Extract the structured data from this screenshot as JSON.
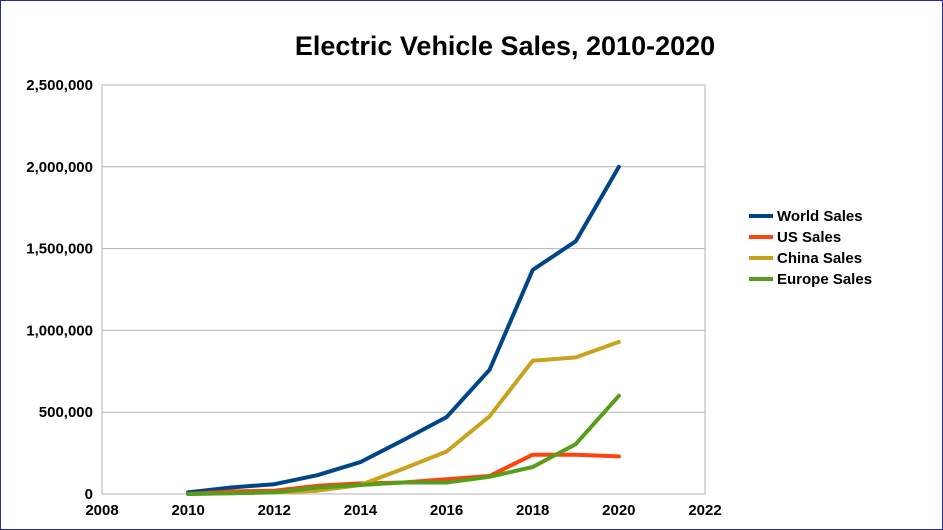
{
  "chart_data": {
    "type": "line",
    "title": "Electric Vehicle Sales, 2010-2020",
    "xlabel": "",
    "ylabel": "",
    "xlim": [
      2008,
      2022
    ],
    "ylim": [
      0,
      2500000
    ],
    "x_ticks": [
      2008,
      2010,
      2012,
      2014,
      2016,
      2018,
      2020,
      2022
    ],
    "x_tick_labels": [
      "2008",
      "2010",
      "2012",
      "2014",
      "2016",
      "2018",
      "2020",
      "2022"
    ],
    "y_ticks": [
      0,
      500000,
      1000000,
      1500000,
      2000000,
      2500000
    ],
    "y_tick_labels": [
      "0",
      "500,000",
      "1,000,000",
      "1,500,000",
      "2,000,000",
      "2,500,000"
    ],
    "grid": "horizontal",
    "legend_position": "right",
    "x": [
      2010,
      2011,
      2012,
      2013,
      2014,
      2015,
      2016,
      2017,
      2018,
      2019,
      2020
    ],
    "series": [
      {
        "name": "World Sales",
        "color": "#004586",
        "values": [
          10000,
          40000,
          60000,
          115000,
          195000,
          330000,
          470000,
          760000,
          1370000,
          1545000,
          2000000
        ]
      },
      {
        "name": "US Sales",
        "color": "#ff420e",
        "values": [
          0,
          15000,
          20000,
          50000,
          65000,
          70000,
          90000,
          110000,
          240000,
          240000,
          230000
        ]
      },
      {
        "name": "China Sales",
        "color": "#c9a21e",
        "values": [
          0,
          5000,
          10000,
          20000,
          55000,
          155000,
          260000,
          475000,
          815000,
          835000,
          930000
        ]
      },
      {
        "name": "Europe Sales",
        "color": "#579d1c",
        "values": [
          0,
          5000,
          10000,
          40000,
          55000,
          70000,
          70000,
          105000,
          165000,
          305000,
          600000
        ]
      }
    ]
  }
}
